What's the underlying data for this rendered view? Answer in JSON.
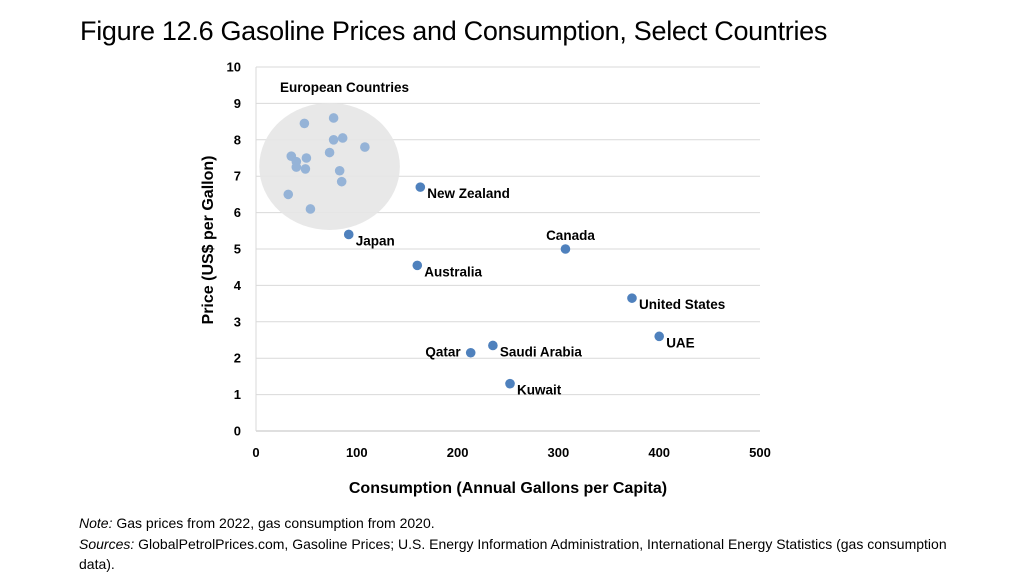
{
  "slide": {
    "title": "Figure 12.6 Gasoline Prices and Consumption, Select Countries"
  },
  "chart_data": {
    "type": "scatter",
    "title": "Figure 12.6 Gasoline Prices and Consumption, Select Countries",
    "xlabel": "Consumption (Annual Gallons per Capita)",
    "ylabel": "Price (US$ per Gallon)",
    "xlim": [
      0,
      500
    ],
    "ylim": [
      0,
      10
    ],
    "xticks": [
      0,
      100,
      200,
      300,
      400,
      500
    ],
    "yticks": [
      0,
      1,
      2,
      3,
      4,
      5,
      6,
      7,
      8,
      9,
      10
    ],
    "grid": "horizontal",
    "point_color": "#4f81bd",
    "cluster_point_color": "#95b3d7",
    "cluster_fill": "#e6e6e6",
    "group_label": "European Countries",
    "labeled_points": [
      {
        "name": "New Zealand",
        "x": 163,
        "y": 6.7,
        "label_side": "right"
      },
      {
        "name": "Japan",
        "x": 92,
        "y": 5.4,
        "label_side": "right"
      },
      {
        "name": "Australia",
        "x": 160,
        "y": 4.55,
        "label_side": "right"
      },
      {
        "name": "Canada",
        "x": 307,
        "y": 5.0,
        "label_side": "above"
      },
      {
        "name": "United States",
        "x": 373,
        "y": 3.65,
        "label_side": "right"
      },
      {
        "name": "UAE",
        "x": 400,
        "y": 2.6,
        "label_side": "right"
      },
      {
        "name": "Saudi Arabia",
        "x": 235,
        "y": 2.35,
        "label_side": "right"
      },
      {
        "name": "Qatar",
        "x": 213,
        "y": 2.15,
        "label_side": "left"
      },
      {
        "name": "Kuwait",
        "x": 252,
        "y": 1.3,
        "label_side": "right"
      }
    ],
    "european_points": [
      {
        "x": 77,
        "y": 8.6
      },
      {
        "x": 48,
        "y": 8.45
      },
      {
        "x": 86,
        "y": 8.05
      },
      {
        "x": 77,
        "y": 8.0
      },
      {
        "x": 108,
        "y": 7.8
      },
      {
        "x": 73,
        "y": 7.65
      },
      {
        "x": 35,
        "y": 7.55
      },
      {
        "x": 50,
        "y": 7.5
      },
      {
        "x": 40,
        "y": 7.4
      },
      {
        "x": 40,
        "y": 7.25
      },
      {
        "x": 49,
        "y": 7.2
      },
      {
        "x": 83,
        "y": 7.15
      },
      {
        "x": 85,
        "y": 6.85
      },
      {
        "x": 32,
        "y": 6.5
      },
      {
        "x": 54,
        "y": 6.1
      }
    ]
  },
  "notes": {
    "note_label": "Note:",
    "note_text": "Gas prices from 2022, gas consumption from 2020.",
    "sources_label": "Sources:",
    "sources_text": "GlobalPetrolPrices.com, Gasoline Prices; U.S. Energy Information Administration, International Energy Statistics (gas consumption data)."
  }
}
